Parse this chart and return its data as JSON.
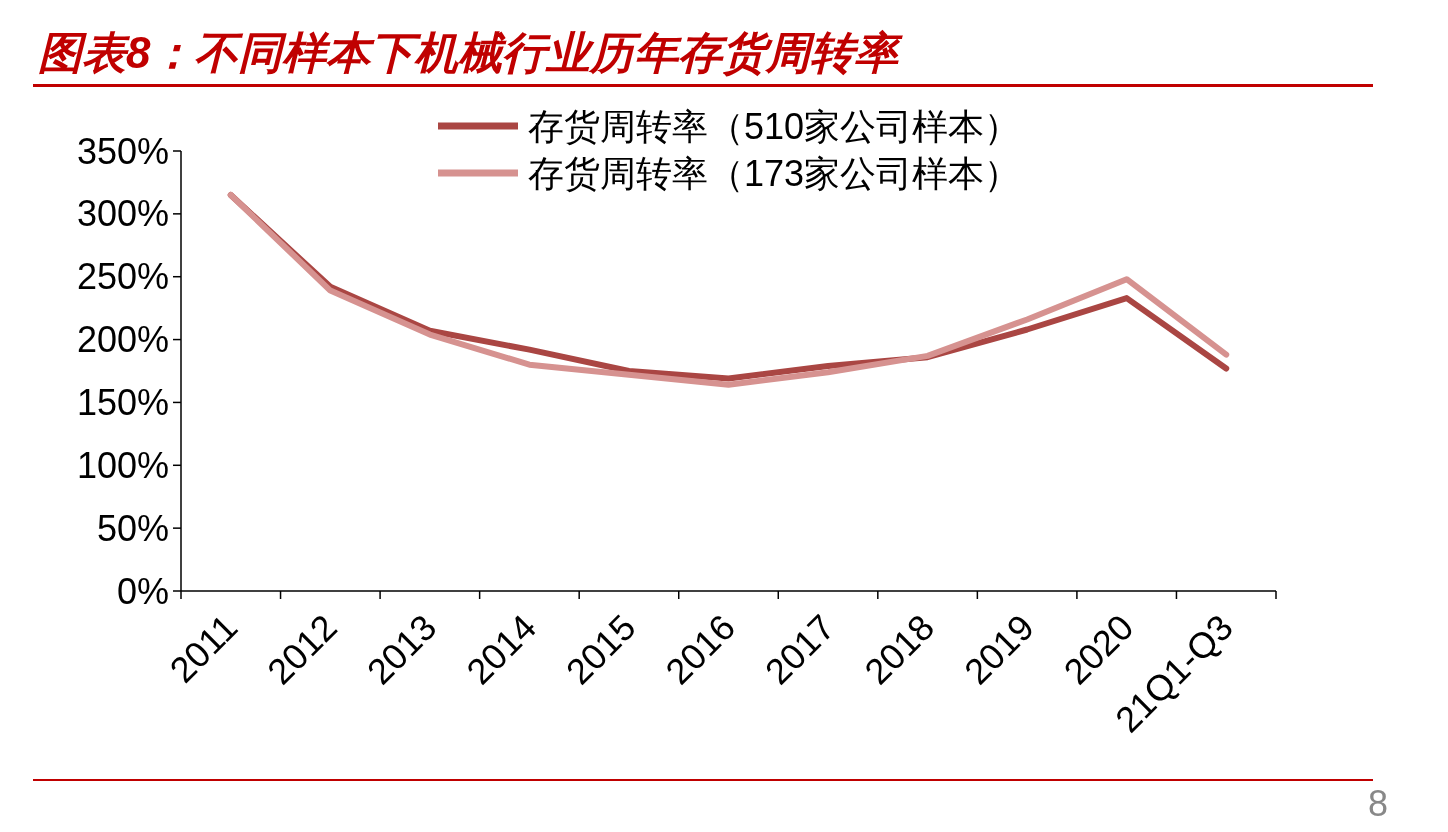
{
  "chart_data": {
    "type": "line",
    "title": "图表8：不同样本下机械行业历年存货周转率",
    "categories": [
      "2011",
      "2012",
      "2013",
      "2014",
      "2015",
      "2016",
      "2017",
      "2018",
      "2019",
      "2020",
      "21Q1-Q3"
    ],
    "series": [
      {
        "name": "存货周转率（510家公司样本）",
        "color": "#aa4643",
        "values": [
          315,
          242,
          207,
          192,
          175,
          169,
          179,
          186,
          208,
          233,
          177
        ]
      },
      {
        "name": "存货周转率（173家公司样本）",
        "color": "#d69290",
        "values": [
          315,
          239,
          204,
          180,
          172,
          164,
          174,
          187,
          216,
          248,
          188
        ]
      }
    ],
    "ylim": [
      0,
      350
    ],
    "yticks": [
      {
        "value": 0,
        "label": "0%"
      },
      {
        "value": 50,
        "label": "50%"
      },
      {
        "value": 100,
        "label": "100%"
      },
      {
        "value": 150,
        "label": "150%"
      },
      {
        "value": 200,
        "label": "200%"
      },
      {
        "value": 250,
        "label": "250%"
      },
      {
        "value": 300,
        "label": "300%"
      },
      {
        "value": 350,
        "label": "350%"
      }
    ],
    "grid": false,
    "legend": "top",
    "marker": "none",
    "line_style": "solid",
    "annotations": [
      "8"
    ]
  }
}
